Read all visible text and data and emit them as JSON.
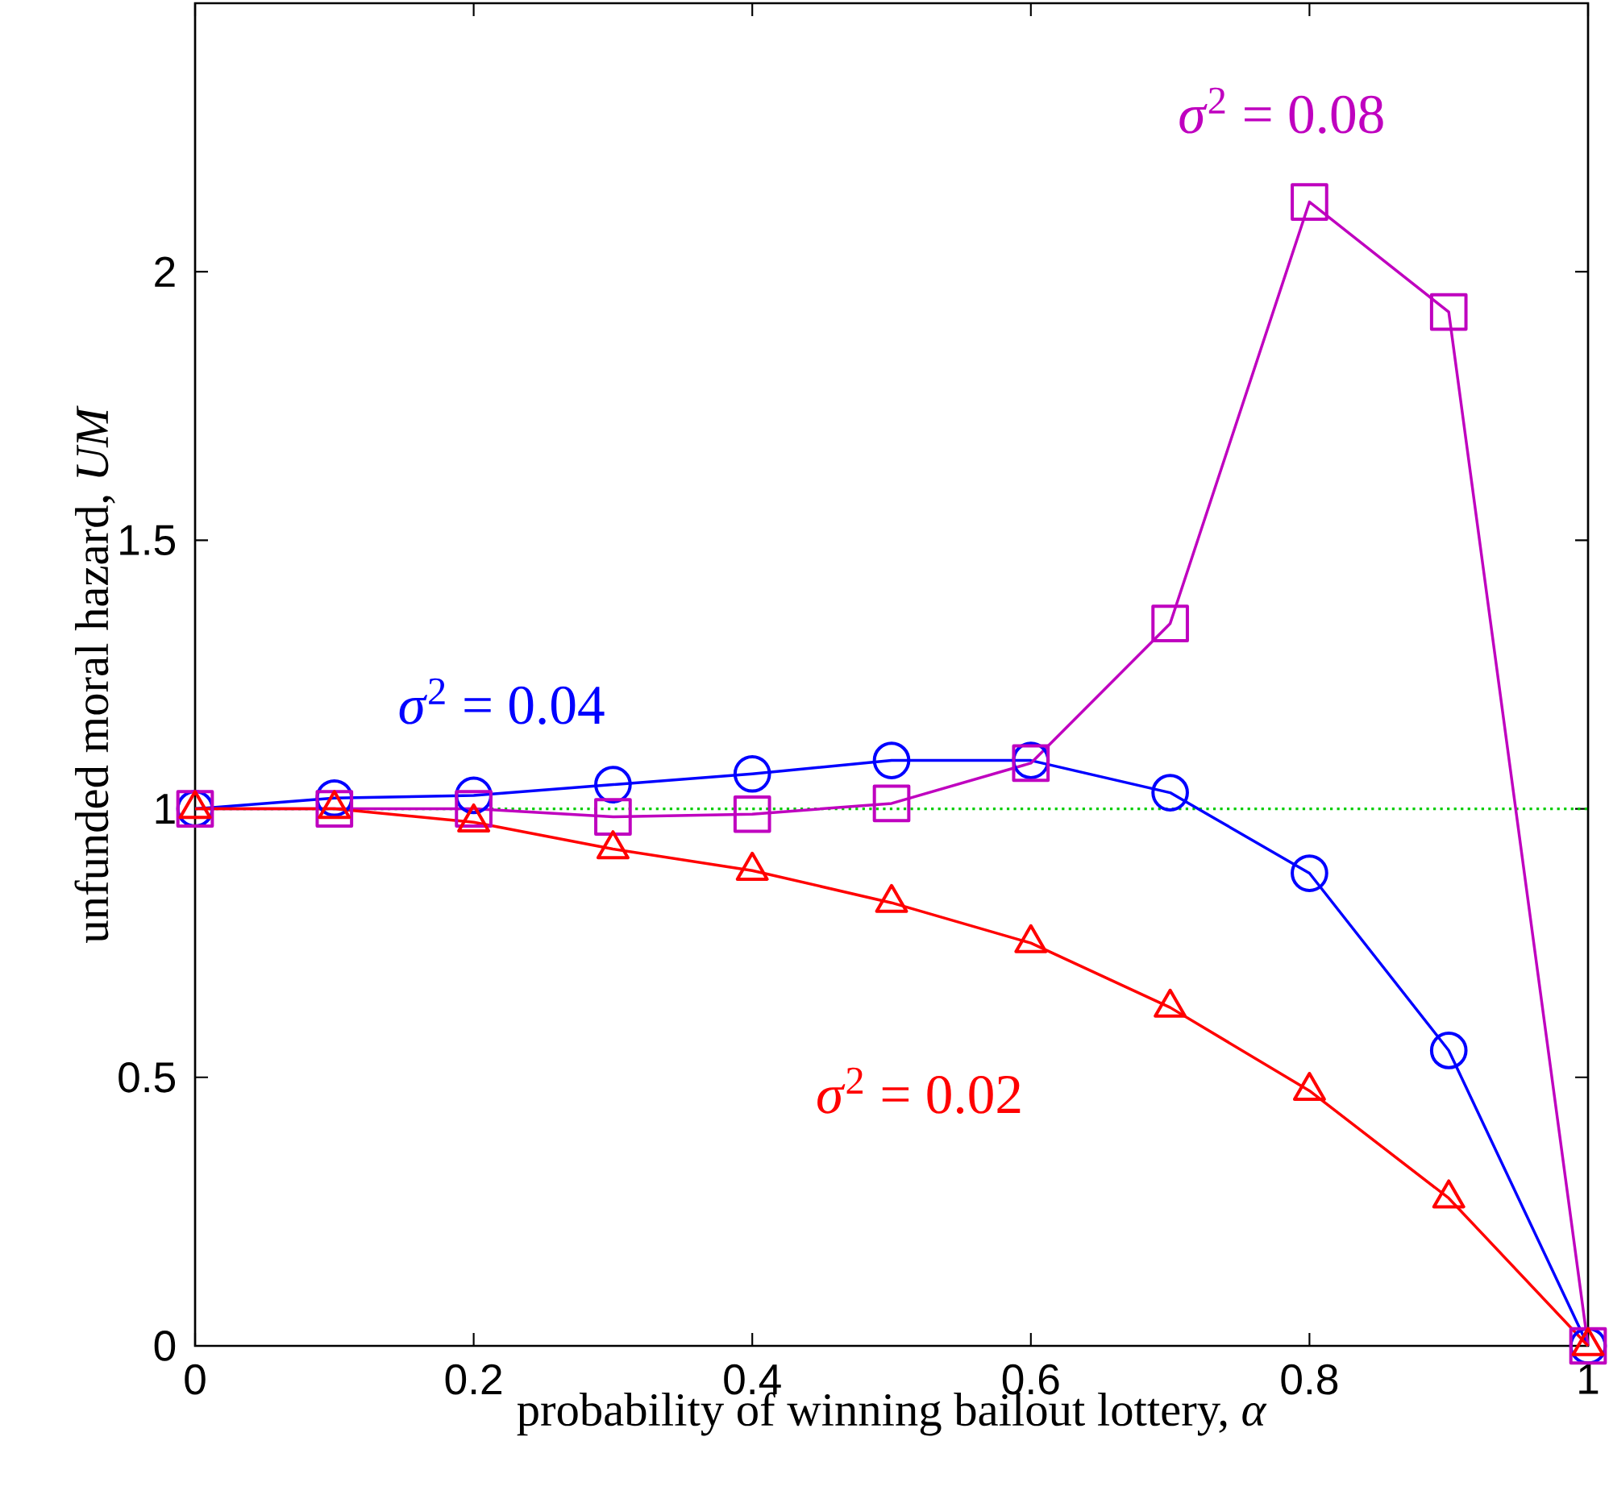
{
  "chart_data": {
    "type": "line",
    "xlabel": "probability of winning bailout lottery, *α*",
    "ylabel": "unfunded moral hazard, *UM*",
    "x": [
      0,
      0.1,
      0.2,
      0.3,
      0.4,
      0.5,
      0.6,
      0.7,
      0.8,
      0.9,
      1
    ],
    "xlim": [
      0,
      1
    ],
    "xticks": [
      0,
      0.2,
      0.4,
      0.6,
      0.8,
      1
    ],
    "ylim": [
      0,
      2.5
    ],
    "yticks": [
      0,
      0.5,
      1,
      1.5,
      2
    ],
    "series": [
      {
        "color": "#0000ff",
        "marker": "circle",
        "values": [
          1.0,
          1.02,
          1.025,
          1.045,
          1.065,
          1.09,
          1.09,
          1.03,
          0.88,
          0.55,
          0
        ]
      },
      {
        "color": "#bf00bf",
        "marker": "square",
        "values": [
          1.0,
          1.0,
          1.0,
          0.985,
          0.99,
          1.01,
          1.085,
          1.345,
          2.13,
          1.925,
          0
        ]
      },
      {
        "color": "#ff0000",
        "marker": "triangle",
        "values": [
          1.0,
          1.0,
          0.975,
          0.925,
          0.885,
          0.825,
          0.75,
          0.63,
          0.475,
          0.275,
          0
        ]
      }
    ],
    "ref_lines": [
      {
        "axis": "y",
        "value": 1,
        "color": "#00cc00",
        "line_style": "dotted"
      }
    ],
    "annotations": [
      "*σ*$^{2}$ = 0.04",
      "*σ*$^{2}$ = 0.08",
      "*σ*$^{2}$ = 0.02"
    ]
  }
}
